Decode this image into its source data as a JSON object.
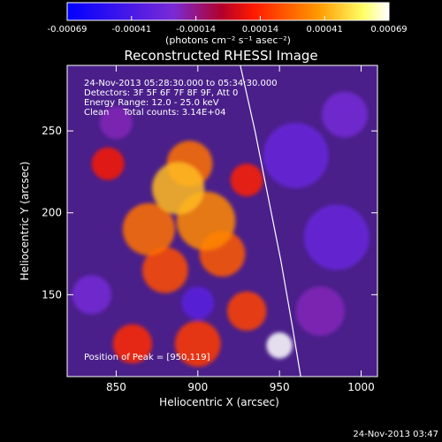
{
  "chart_data": {
    "type": "heatmap",
    "title": "Reconstructed RHESSI Image",
    "xlabel": "Heliocentric X (arcsec)",
    "ylabel": "Heliocentric Y (arcsec)",
    "xlim": [
      820,
      1010
    ],
    "ylim": [
      100,
      290
    ],
    "x_ticks": [
      "850",
      "900",
      "950",
      "1000"
    ],
    "y_ticks": [
      "150",
      "200",
      "250"
    ],
    "x_tick_values": [
      850,
      900,
      950,
      1000
    ],
    "y_tick_values": [
      150,
      200,
      250
    ],
    "colorbar": {
      "range": [
        -0.00069,
        0.00069
      ],
      "tick_labels": [
        "-0.00069",
        "-0.00041",
        "-0.00014",
        "0.00014",
        "0.00041",
        "0.00069"
      ],
      "unit_label": "(photons cm⁻² s⁻¹ asec⁻²)",
      "colors": [
        "#0000ff",
        "#7a2ad6",
        "#b3002a",
        "#ff1a00",
        "#ff9900",
        "#ffff66",
        "#ffffff"
      ]
    },
    "annotations": {
      "time_range": "24-Nov-2013 05:28:30.000 to 05:34:30.000",
      "detectors": "Detectors: 3F 5F 6F 7F 8F 9F, Att 0",
      "energy": "Energy Range: 12.0 - 25.0 keV",
      "method_counts": "Clean     Total counts: 3.14E+04",
      "peak": "Position of Peak = [950,119]"
    },
    "peak_position": [
      950,
      119
    ],
    "limb_curve": [
      [
        926,
        290
      ],
      [
        935,
        250
      ],
      [
        943,
        210
      ],
      [
        951,
        170
      ],
      [
        958,
        130
      ],
      [
        963,
        100
      ]
    ],
    "blobs": [
      {
        "x": 950,
        "y": 119,
        "r": 8,
        "v": 0.00069
      },
      {
        "x": 888,
        "y": 215,
        "r": 16,
        "v": 0.00045
      },
      {
        "x": 905,
        "y": 195,
        "r": 18,
        "v": 0.00035
      },
      {
        "x": 870,
        "y": 190,
        "r": 16,
        "v": 0.0003
      },
      {
        "x": 895,
        "y": 230,
        "r": 14,
        "v": 0.0003
      },
      {
        "x": 915,
        "y": 175,
        "r": 14,
        "v": 0.00025
      },
      {
        "x": 880,
        "y": 165,
        "r": 14,
        "v": 0.00022
      },
      {
        "x": 930,
        "y": 140,
        "r": 12,
        "v": 0.0002
      },
      {
        "x": 860,
        "y": 120,
        "r": 12,
        "v": 0.00015
      },
      {
        "x": 900,
        "y": 120,
        "r": 14,
        "v": 0.00018
      },
      {
        "x": 930,
        "y": 220,
        "r": 10,
        "v": 0.00012
      },
      {
        "x": 845,
        "y": 230,
        "r": 10,
        "v": 0.0001
      },
      {
        "x": 900,
        "y": 145,
        "r": 10,
        "v": -0.00035
      },
      {
        "x": 985,
        "y": 185,
        "r": 20,
        "v": -0.0003
      },
      {
        "x": 960,
        "y": 235,
        "r": 20,
        "v": -0.0003
      },
      {
        "x": 990,
        "y": 260,
        "r": 14,
        "v": -0.00025
      },
      {
        "x": 835,
        "y": 150,
        "r": 12,
        "v": -0.00025
      },
      {
        "x": 850,
        "y": 255,
        "r": 10,
        "v": -0.0002
      },
      {
        "x": 975,
        "y": 140,
        "r": 15,
        "v": -0.0002
      }
    ]
  },
  "footer": {
    "timestamp": "24-Nov-2013 03:47"
  }
}
